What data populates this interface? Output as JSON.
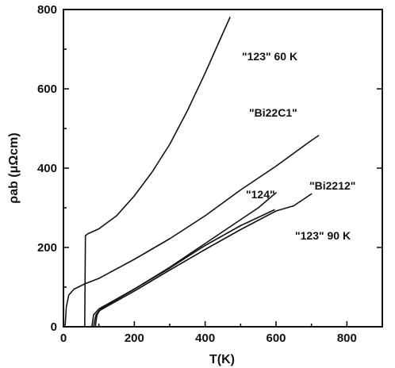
{
  "chart_data": {
    "type": "line",
    "xlabel": "T(K)",
    "ylabel": "ρab (μΩcm)",
    "xlim": [
      0,
      900
    ],
    "ylim": [
      0,
      800
    ],
    "x_ticks": [
      "0",
      "200",
      "400",
      "600",
      "800"
    ],
    "y_ticks": [
      "0",
      "200",
      "400",
      "600",
      "800"
    ],
    "grid": false,
    "series": [
      {
        "name": "\"123\" 60 K",
        "points": [
          [
            60,
            0
          ],
          [
            60,
            5
          ],
          [
            62,
            230
          ],
          [
            70,
            235
          ],
          [
            100,
            247
          ],
          [
            150,
            280
          ],
          [
            200,
            330
          ],
          [
            250,
            390
          ],
          [
            300,
            460
          ],
          [
            350,
            545
          ],
          [
            400,
            640
          ],
          [
            440,
            720
          ],
          [
            470,
            780
          ]
        ]
      },
      {
        "name": "\"Bi22C1\"",
        "points": [
          [
            0,
            0
          ],
          [
            5,
            5
          ],
          [
            8,
            50
          ],
          [
            15,
            80
          ],
          [
            30,
            95
          ],
          [
            60,
            108
          ],
          [
            100,
            122
          ],
          [
            200,
            170
          ],
          [
            300,
            222
          ],
          [
            400,
            280
          ],
          [
            500,
            345
          ],
          [
            600,
            405
          ],
          [
            700,
            470
          ],
          [
            720,
            482
          ]
        ]
      },
      {
        "name": "\"124\"",
        "points": [
          [
            80,
            0
          ],
          [
            82,
            10
          ],
          [
            85,
            30
          ],
          [
            100,
            45
          ],
          [
            200,
            95
          ],
          [
            300,
            150
          ],
          [
            400,
            210
          ],
          [
            500,
            270
          ],
          [
            550,
            300
          ],
          [
            600,
            338
          ]
        ]
      },
      {
        "name": "\"Bi2212\"",
        "points": [
          [
            85,
            0
          ],
          [
            88,
            15
          ],
          [
            92,
            30
          ],
          [
            100,
            40
          ],
          [
            200,
            90
          ],
          [
            300,
            143
          ],
          [
            400,
            195
          ],
          [
            500,
            245
          ],
          [
            600,
            292
          ],
          [
            650,
            305
          ],
          [
            700,
            335
          ]
        ]
      },
      {
        "name": "\"123\" 90 K",
        "points": [
          [
            90,
            0
          ],
          [
            92,
            15
          ],
          [
            95,
            30
          ],
          [
            105,
            45
          ],
          [
            200,
            95
          ],
          [
            300,
            148
          ],
          [
            400,
            205
          ],
          [
            500,
            255
          ],
          [
            560,
            280
          ],
          [
            595,
            295
          ]
        ]
      }
    ]
  }
}
